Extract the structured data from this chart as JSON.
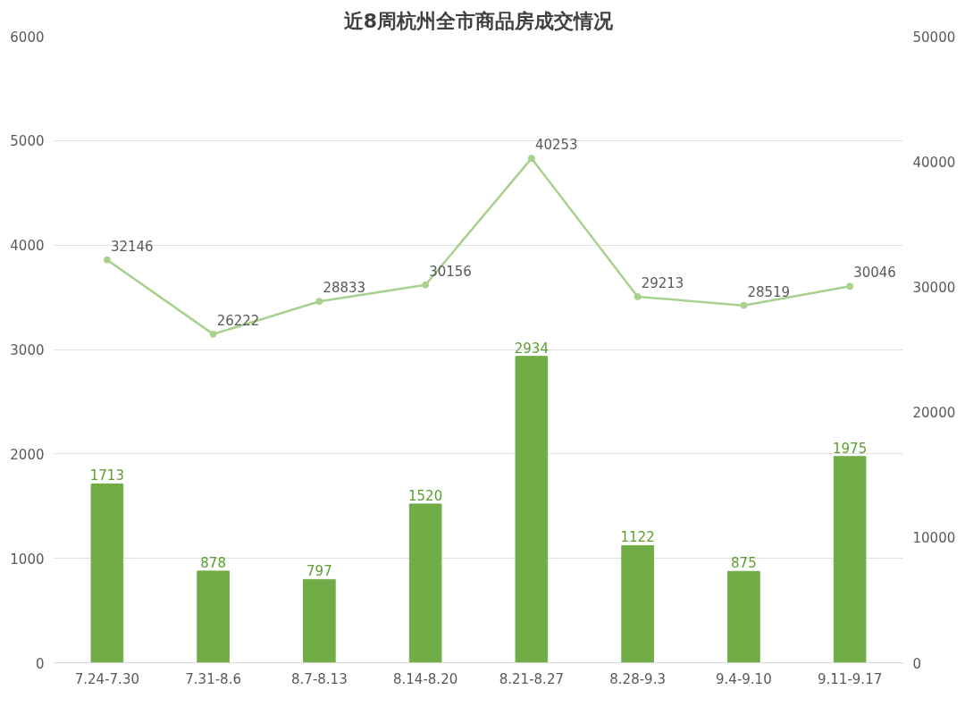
{
  "chart_data": {
    "type": "bar",
    "title": "近8周杭州全市商品房成交情况",
    "categories": [
      "7.24-7.30",
      "7.31-8.6",
      "8.7-8.13",
      "8.14-8.20",
      "8.21-8.27",
      "8.28-9.3",
      "9.4-9.10",
      "9.11-9.17"
    ],
    "series": [
      {
        "color": "#70ad47",
        "values": [
          1713,
          878,
          797,
          1520,
          2934,
          1122,
          875,
          1975
        ]
      },
      {
        "type": "line",
        "axis": "y2",
        "color": "#a9d18e",
        "marker": "circle",
        "values": [
          32146,
          26222,
          28833,
          30156,
          40253,
          29213,
          28519,
          30046
        ]
      }
    ],
    "ylim": [
      0,
      6000
    ],
    "yticks": [
      0,
      1000,
      2000,
      3000,
      4000,
      5000,
      6000
    ],
    "y2lim": [
      0,
      50000
    ],
    "y2ticks": [
      0,
      10000,
      20000,
      30000,
      40000,
      50000
    ],
    "grid": "y",
    "data_labels": true
  }
}
